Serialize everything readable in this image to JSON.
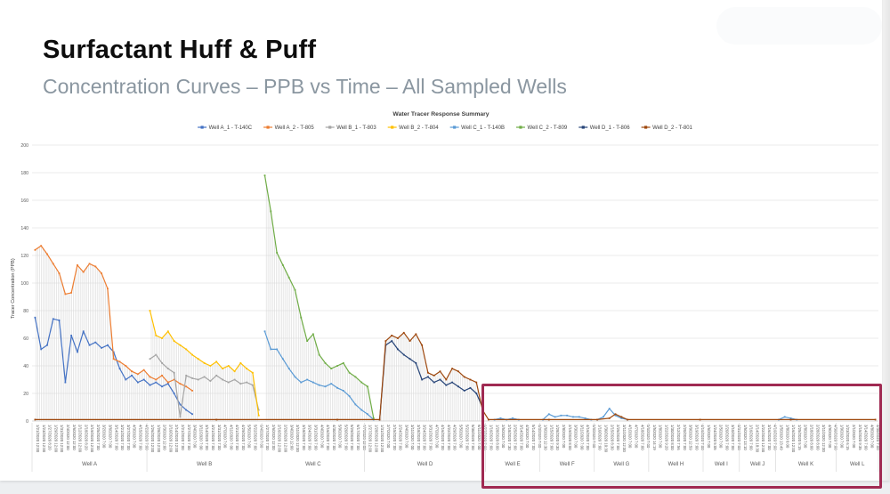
{
  "page": {
    "title": "Surfactant Huff & Puff",
    "subtitle": "Concentration Curves – PPB vs Time – All Sampled Wells"
  },
  "chart_data": {
    "type": "line",
    "title": "Water Tracer Response Summary",
    "ylabel": "Tracer Concentration (PPB)",
    "ylim": [
      0,
      200
    ],
    "ytick_step": 20,
    "grid": true,
    "legend_position": "top",
    "highlight": {
      "color": "#A02A52",
      "region": "Well E through Well L"
    },
    "groups": [
      {
        "label": "Well A",
        "ticks": [
          "1/21/2020 12:00",
          "1/23/2020 12:00",
          "1/27/2020 8:20",
          "1/29/2020 12:00",
          "1/31/2020 12:00",
          "2/4/2020 12:00",
          "2/6/2020 12:00",
          "2/12/2020 12:00",
          "2/18/2020 8:20",
          "2/19/2020 12:00",
          "2/25/2020 7:00",
          "3/2/2020 7:00",
          "3/6/2020 7:00",
          "3/14/2020 7:00",
          "3/21/2020 7:00",
          "3/27/2020 7:00",
          "4/3/2020 7:00",
          "4/15/2020 7:00",
          "4/23/2020 7:00"
        ]
      },
      {
        "label": "Well B",
        "ticks": [
          "1/26/2020 12:00",
          "1/28/2020 12:00",
          "2/3/2020 12:00",
          "2/10/2020 12:00",
          "2/14/2020 12:00",
          "2/21/2020 7:00",
          "2/27/2020 7:00",
          "3/4/2020 7:00",
          "3/11/2020 7:00",
          "3/14/2020 7:00",
          "3/21/2020 7:00",
          "3/31/2020 7:00",
          "4/7/2020 7:00",
          "4/11/2020 7:00",
          "4/21/2020 7:00",
          "4/29/2020 7:00",
          "5/5/2020 7:00",
          "5/22/2020 7:00",
          "6/4/2020 7:00"
        ]
      },
      {
        "label": "Well C",
        "ticks": [
          "1/27/2020 7:00",
          "2/6/2020 12:00",
          "2/16/2020 12:00",
          "2/26/2020 12:00",
          "3/4/2020 12:00",
          "3/11/2020 12:00",
          "3/18/2020 7:00",
          "3/24/2020 7:00",
          "3/31/2020 7:00",
          "4/4/2020 7:00",
          "4/16/2020 7:00",
          "4/30/2020 7:00",
          "5/9/2020 7:00",
          "5/20/2020 7:00",
          "5/29/2020 7:00",
          "6/17/2020 7:00",
          "7/7/2020 12:00"
        ]
      },
      {
        "label": "Well D",
        "ticks": [
          "1/27/2020 12:00",
          "1/28/2020 12:00",
          "1/31/2020 12:00",
          "2/7/2020 7:00",
          "2/15/2020 7:00",
          "2/24/2020 7:00",
          "3/4/2020 7:00",
          "3/11/2020 7:00",
          "3/18/2020 7:00",
          "3/24/2020 7:00",
          "3/31/2020 7:00",
          "4/7/2020 7:00",
          "4/16/2020 7:00",
          "4/22/2020 7:00",
          "4/29/2020 7:00",
          "5/5/2020 7:00",
          "5/22/2020 7:00",
          "5/30/2020 7:00",
          "6/11/2020 7:00",
          "6/27/2020 7:00"
        ]
      },
      {
        "label": "Well E",
        "ticks": [
          "1/16/2020 7:00",
          "1/28/2020 8:00",
          "2/5/2020 7:00",
          "2/18/2020 7:30",
          "2/25/2020 7:00",
          "3/14/2020 7:00",
          "4/3/2020 7:00",
          "5/14/2020 7:00",
          "6/3/2020 7:00"
        ]
      },
      {
        "label": "Well F",
        "ticks": [
          "1/6/2020 12:30",
          "1/15/2020 7:00",
          "1/28/2020 9:30",
          "2/8/2020 7:00",
          "2/19/2020 8:00",
          "3/3/2020 7:00",
          "3/11/2020 7:00",
          "4/16/2020 7:00",
          "5/8/2020 7:00"
        ]
      },
      {
        "label": "Well G",
        "ticks": [
          "1/10/2020 7:00",
          "1/30/2020 10:30",
          "2/15/2020 8:30",
          "2/25/2020 7:00",
          "3/11/2020 12:00",
          "4/1/2020 7:00",
          "4/7/2020 7:00",
          "4/18/2020 7:00",
          "5/6/2020 7:00"
        ]
      },
      {
        "label": "Well H",
        "ticks": [
          "1/5/2020 14:19",
          "1/8/2020 7:00",
          "1/22/2020 9:20",
          "1/30/2020 8:00",
          "2/12/2020 7:56",
          "2/20/2020 7:00",
          "3/9/2020 12:59",
          "3/19/2020 7:00",
          "4/16/2020 7:00"
        ]
      },
      {
        "label": "Well I",
        "ticks": [
          "1/6/2020 7:00",
          "1/24/2020 5:05",
          "2/5/2020 7:00",
          "2/20/2020 7:00",
          "3/10/2020 7:00",
          "3/31/2020 7:00"
        ]
      },
      {
        "label": "Well J",
        "ticks": [
          "1/5/2020 13:10",
          "1/16/2020 7:00",
          "2/14/2020 18:30",
          "2/22/2020 12:00",
          "3/16/2020 7:00",
          "4/16/2020 7:00"
        ]
      },
      {
        "label": "Well K",
        "ticks": [
          "1/5/2020 13:49",
          "1/8/2020 6:00",
          "1/16/2020 12:00",
          "1/25/2020 5:15",
          "2/8/2020 7:00",
          "2/18/2020 8:00",
          "2/28/2020 8:00",
          "3/11/2020 12:00",
          "4/9/2020 7:00",
          "4/30/2020 7:00"
        ]
      },
      {
        "label": "Well L",
        "ticks": [
          "1/9/2020 7:00",
          "1/23/2020 6:15",
          "2/1/2020 7:00",
          "2/15/2020 9:35",
          "3/14/2020 7:00",
          "4/8/2020 7:00",
          "4/30/2020 7:00"
        ]
      }
    ],
    "series": [
      {
        "name": "Well A_1 - T-140C",
        "color": "#4472C4",
        "segments": [
          [
            [
              0,
              75
            ],
            [
              1,
              52
            ],
            [
              2,
              55
            ],
            [
              3,
              74
            ],
            [
              4,
              73
            ],
            [
              5,
              28
            ],
            [
              6,
              62
            ],
            [
              7,
              50
            ],
            [
              8,
              65
            ],
            [
              9,
              55
            ],
            [
              10,
              57
            ],
            [
              11,
              53
            ],
            [
              12,
              55
            ],
            [
              13,
              50
            ],
            [
              14,
              38
            ],
            [
              15,
              30
            ],
            [
              16,
              33
            ],
            [
              17,
              28
            ],
            [
              18,
              30
            ],
            [
              19,
              26
            ],
            [
              20,
              28
            ],
            [
              21,
              25
            ],
            [
              22,
              27
            ],
            [
              23,
              20
            ],
            [
              24,
              12
            ],
            [
              25,
              8
            ],
            [
              26,
              5
            ]
          ]
        ]
      },
      {
        "name": "Well A_2 - T-805",
        "color": "#ED7D31",
        "segments": [
          [
            [
              0,
              124
            ],
            [
              1,
              127
            ],
            [
              2,
              121
            ],
            [
              3,
              114
            ],
            [
              4,
              107
            ],
            [
              5,
              92
            ],
            [
              6,
              93
            ],
            [
              7,
              113
            ],
            [
              8,
              108
            ],
            [
              9,
              114
            ],
            [
              10,
              112
            ],
            [
              11,
              107
            ],
            [
              12,
              96
            ],
            [
              13,
              45
            ],
            [
              14,
              43
            ],
            [
              15,
              40
            ],
            [
              16,
              36
            ],
            [
              17,
              34
            ],
            [
              18,
              37
            ],
            [
              19,
              32
            ],
            [
              20,
              30
            ],
            [
              21,
              33
            ],
            [
              22,
              28
            ],
            [
              23,
              30
            ],
            [
              24,
              27
            ],
            [
              25,
              25
            ],
            [
              26,
              22
            ]
          ]
        ]
      },
      {
        "name": "Well B_1 - T-803",
        "color": "#A5A5A5",
        "segments": [
          [
            [
              19,
              45
            ],
            [
              20,
              48
            ],
            [
              21,
              42
            ],
            [
              22,
              38
            ],
            [
              23,
              35
            ],
            [
              24,
              3
            ],
            [
              25,
              33
            ],
            [
              26,
              31
            ],
            [
              27,
              30
            ],
            [
              28,
              32
            ],
            [
              29,
              29
            ],
            [
              30,
              33
            ],
            [
              31,
              30
            ],
            [
              32,
              28
            ],
            [
              33,
              30
            ],
            [
              34,
              27
            ],
            [
              35,
              28
            ],
            [
              36,
              26
            ],
            [
              37,
              8
            ]
          ]
        ]
      },
      {
        "name": "Well B_2 - T-804",
        "color": "#FFC000",
        "segments": [
          [
            [
              19,
              80
            ],
            [
              20,
              62
            ],
            [
              21,
              60
            ],
            [
              22,
              65
            ],
            [
              23,
              58
            ],
            [
              24,
              55
            ],
            [
              25,
              52
            ],
            [
              26,
              48
            ],
            [
              27,
              45
            ],
            [
              28,
              42
            ],
            [
              29,
              40
            ],
            [
              30,
              43
            ],
            [
              31,
              38
            ],
            [
              32,
              40
            ],
            [
              33,
              36
            ],
            [
              34,
              42
            ],
            [
              35,
              38
            ],
            [
              36,
              35
            ],
            [
              37,
              4
            ]
          ]
        ]
      },
      {
        "name": "Well C_1 - T-140B",
        "color": "#5B9BD5",
        "segments": [
          [
            [
              38,
              65
            ],
            [
              39,
              52
            ],
            [
              40,
              52
            ],
            [
              41,
              45
            ],
            [
              42,
              38
            ],
            [
              43,
              32
            ],
            [
              44,
              28
            ],
            [
              45,
              30
            ],
            [
              46,
              28
            ],
            [
              47,
              26
            ],
            [
              48,
              25
            ],
            [
              49,
              27
            ],
            [
              50,
              24
            ],
            [
              51,
              22
            ],
            [
              52,
              18
            ],
            [
              53,
              12
            ],
            [
              54,
              8
            ],
            [
              55,
              5
            ],
            [
              56,
              1
            ]
          ],
          [
            [
              76,
              1
            ],
            [
              77,
              2
            ],
            [
              78,
              1
            ],
            [
              79,
              2
            ],
            [
              80,
              1
            ]
          ],
          [
            [
              84,
              1
            ],
            [
              85,
              5
            ],
            [
              86,
              3
            ],
            [
              87,
              4
            ],
            [
              88,
              4
            ],
            [
              89,
              3
            ],
            [
              90,
              3
            ],
            [
              91,
              2
            ],
            [
              92,
              1
            ]
          ],
          [
            [
              93,
              1
            ],
            [
              94,
              3
            ],
            [
              95,
              9
            ],
            [
              96,
              4
            ],
            [
              97,
              2
            ],
            [
              98,
              1
            ]
          ],
          [
            [
              123,
              1
            ],
            [
              124,
              3
            ],
            [
              125,
              2
            ],
            [
              126,
              1
            ]
          ]
        ]
      },
      {
        "name": "Well C_2 - T-809",
        "color": "#70AD47",
        "segments": [
          [
            [
              38,
              178
            ],
            [
              39,
              152
            ],
            [
              40,
              122
            ],
            [
              41,
              113
            ],
            [
              42,
              104
            ],
            [
              43,
              95
            ],
            [
              44,
              75
            ],
            [
              45,
              58
            ],
            [
              46,
              63
            ],
            [
              47,
              48
            ],
            [
              48,
              42
            ],
            [
              49,
              38
            ],
            [
              50,
              40
            ],
            [
              51,
              42
            ],
            [
              52,
              35
            ],
            [
              53,
              32
            ],
            [
              54,
              28
            ],
            [
              55,
              25
            ],
            [
              56,
              2
            ]
          ]
        ]
      },
      {
        "name": "Well D_1 - T-806",
        "color": "#264478",
        "segments": [
          [
            [
              57,
              1
            ],
            [
              58,
              55
            ],
            [
              59,
              58
            ],
            [
              60,
              52
            ],
            [
              61,
              48
            ],
            [
              62,
              45
            ],
            [
              63,
              42
            ],
            [
              64,
              30
            ],
            [
              65,
              32
            ],
            [
              66,
              28
            ],
            [
              67,
              30
            ],
            [
              68,
              26
            ],
            [
              69,
              28
            ],
            [
              70,
              25
            ],
            [
              71,
              22
            ],
            [
              72,
              24
            ],
            [
              73,
              20
            ],
            [
              74,
              10
            ]
          ]
        ]
      },
      {
        "name": "Well D_2 - T-801",
        "color": "#9E480E",
        "segments": [
          [
            [
              0,
              1
            ],
            [
              30,
              1
            ],
            [
              50,
              1
            ],
            [
              57,
              1
            ],
            [
              58,
              58
            ],
            [
              59,
              62
            ],
            [
              60,
              60
            ],
            [
              61,
              64
            ],
            [
              62,
              58
            ],
            [
              63,
              63
            ],
            [
              64,
              55
            ],
            [
              65,
              35
            ],
            [
              66,
              33
            ],
            [
              67,
              36
            ],
            [
              68,
              30
            ],
            [
              69,
              38
            ],
            [
              70,
              36
            ],
            [
              71,
              32
            ],
            [
              72,
              30
            ],
            [
              73,
              28
            ],
            [
              74,
              8
            ],
            [
              75,
              1
            ],
            [
              85,
              1
            ],
            [
              93,
              1
            ],
            [
              95,
              2
            ],
            [
              96,
              5
            ],
            [
              97,
              3
            ],
            [
              98,
              1
            ],
            [
              110,
              1
            ],
            [
              125,
              1
            ],
            [
              139,
              1
            ]
          ]
        ]
      }
    ]
  }
}
